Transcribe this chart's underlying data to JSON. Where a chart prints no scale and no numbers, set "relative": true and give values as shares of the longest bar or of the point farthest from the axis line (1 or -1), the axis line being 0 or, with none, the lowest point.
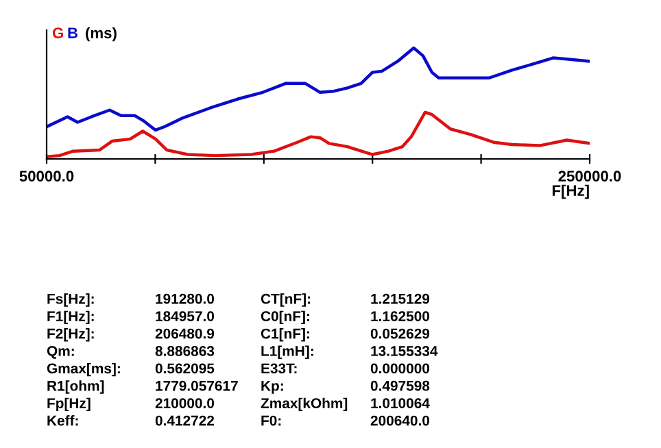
{
  "chart_data": {
    "type": "line",
    "relative": true,
    "ylabel": "(ms)",
    "xlabel": "F[Hz]",
    "xlim": [
      50000,
      250000
    ],
    "xticks": [
      {
        "value": 50000,
        "label": "50000.0"
      },
      {
        "value": 90000,
        "label": null
      },
      {
        "value": 130000,
        "label": null
      },
      {
        "value": 170000,
        "label": null
      },
      {
        "value": 210000,
        "label": null
      },
      {
        "value": 250000,
        "label": "250000.0"
      }
    ],
    "grid": false,
    "legend": false,
    "marker": "none",
    "line_style": "solid",
    "series": [
      {
        "name": "G",
        "color": "#dd1111",
        "x": [
          50000,
          54700,
          59800,
          69500,
          74100,
          80800,
          85400,
          90100,
          94300,
          101900,
          112000,
          125400,
          133800,
          142300,
          147300,
          150700,
          154000,
          160800,
          170000,
          175900,
          181000,
          184300,
          189400,
          191900,
          198700,
          206200,
          214600,
          221400,
          231500,
          241600,
          250000
        ],
        "values": [
          0.02,
          0.03,
          0.07,
          0.08,
          0.16,
          0.18,
          0.25,
          0.18,
          0.08,
          0.04,
          0.03,
          0.04,
          0.07,
          0.15,
          0.2,
          0.19,
          0.14,
          0.11,
          0.04,
          0.07,
          0.11,
          0.2,
          0.42,
          0.4,
          0.27,
          0.22,
          0.15,
          0.13,
          0.12,
          0.17,
          0.14
        ]
      },
      {
        "name": "B",
        "color": "#0a0acc",
        "x": [
          50000,
          57700,
          61400,
          66500,
          73200,
          77400,
          82500,
          85900,
          90100,
          93400,
          100200,
          110300,
          120400,
          129600,
          138000,
          145300,
          150700,
          155700,
          160800,
          165800,
          170000,
          173400,
          179300,
          185200,
          188600,
          191900,
          194400,
          201200,
          213000,
          221400,
          229800,
          236500,
          241600,
          250000
        ],
        "values": [
          0.29,
          0.38,
          0.33,
          0.38,
          0.44,
          0.39,
          0.39,
          0.34,
          0.26,
          0.29,
          0.37,
          0.46,
          0.54,
          0.6,
          0.68,
          0.68,
          0.6,
          0.61,
          0.64,
          0.68,
          0.78,
          0.79,
          0.88,
          1.0,
          0.93,
          0.78,
          0.73,
          0.73,
          0.73,
          0.8,
          0.86,
          0.91,
          0.9,
          0.88
        ]
      }
    ],
    "annotations": [
      "Fs[Hz]:",
      "191280.0",
      "CT[nF]:",
      "1.215129",
      "F1[Hz]:",
      "184957.0",
      "C0[nF]:",
      "1.162500",
      "F2[Hz]:",
      "206480.9",
      "C1[nF]:",
      "0.052629",
      "Qm:",
      "8.886863",
      "L1[mH]:",
      "13.155334",
      "Gmax[ms]:",
      "0.562095",
      "E33T:",
      "0.000000",
      "R1[ohm]",
      "1779.057617",
      "Kp:",
      "0.497598",
      "Fp[Hz]",
      "210000.0",
      "Zmax[kOhm]",
      "1.010064",
      "Keff:",
      "0.412722",
      "F0:",
      "200640.0"
    ]
  }
}
